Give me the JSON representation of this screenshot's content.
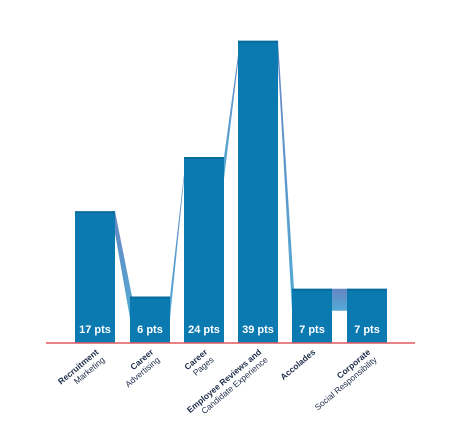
{
  "chart_data": {
    "type": "bar",
    "categories": [
      {
        "bold": "Recruitment",
        "light": "Marketing"
      },
      {
        "bold": "Career",
        "light": "Advertising"
      },
      {
        "bold": "Career",
        "light": "Pages"
      },
      {
        "bold": "Employee Reviews and",
        "light": "Candidate Experience"
      },
      {
        "bold": "Accolades",
        "light": ""
      },
      {
        "bold": "Corporate",
        "light": "Social Responsibility"
      }
    ],
    "values": [
      17,
      6,
      24,
      39,
      7,
      7
    ],
    "value_labels": [
      "17 pts",
      "6 pts",
      "24 pts",
      "39 pts",
      "7 pts",
      "7 pts"
    ],
    "unit": "pts",
    "ylim": [
      0,
      40
    ],
    "title": "",
    "xlabel": "",
    "ylabel": "",
    "grid": false,
    "colors": {
      "bar": "#0a7ab1",
      "bar_top": "#086b9c",
      "connector_start": "#5e7fc0",
      "connector_end": "#4aa6d2",
      "baseline": "#e0595f",
      "label_text": "#ffffff",
      "category_text": "#1f2d4a"
    }
  }
}
